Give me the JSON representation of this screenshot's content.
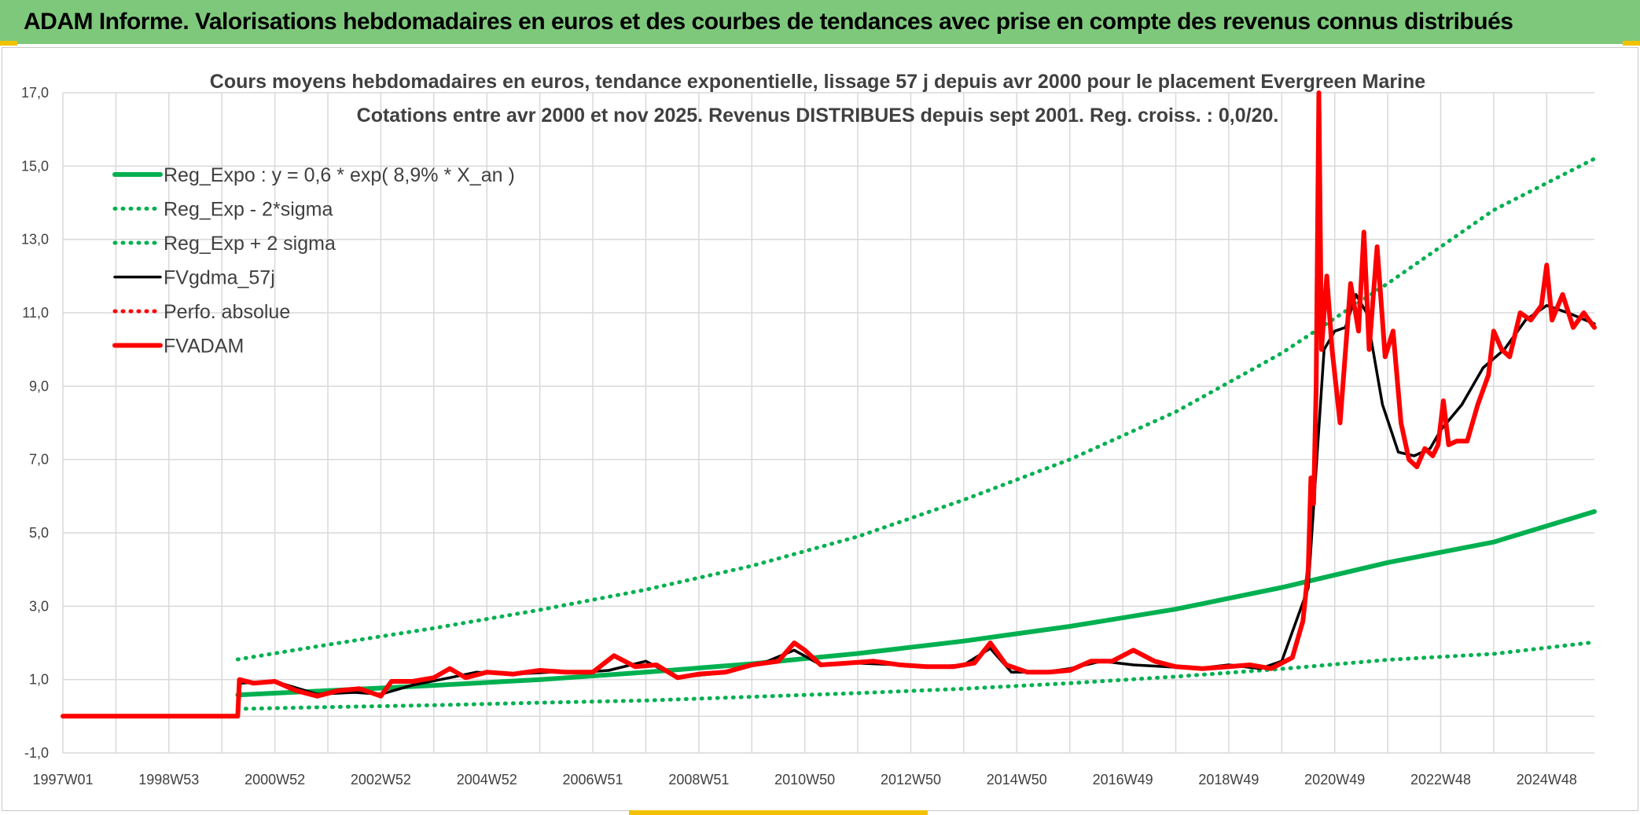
{
  "header": {
    "title": "ADAM Informe. Valorisations hebdomadaires en euros et des courbes de tendances avec prise en compte des revenus connus distribués"
  },
  "colors": {
    "header_bg": "#7ec87c",
    "accent": "#f2c200",
    "reg_expo": "#00b050",
    "fvgdma": "#000000",
    "fvadam": "#ff0000",
    "grid": "#d9d9d9"
  },
  "chart_data": {
    "type": "line",
    "title_lines": [
      "Cours moyens hebdomadaires en euros, tendance exponentielle, lissage 57 j depuis avr 2000 pour le placement Evergreen Marine",
      "Cotations entre avr 2000 et nov 2025. Revenus DISTRIBUES depuis sept 2001. Reg. croiss. : 0,0/20."
    ],
    "x_tick_labels": [
      "1997W01",
      "1998W53",
      "2000W52",
      "2002W52",
      "2004W52",
      "2006W51",
      "2008W51",
      "2010W50",
      "2012W50",
      "2014W50",
      "2016W49",
      "2018W49",
      "2020W49",
      "2022W48",
      "2024W48"
    ],
    "x_tick_years": [
      1997.0,
      1999.0,
      2001.0,
      2003.0,
      2005.0,
      2007.0,
      2009.0,
      2011.0,
      2013.0,
      2015.0,
      2017.0,
      2019.0,
      2021.0,
      2023.0,
      2025.0
    ],
    "x_range": [
      1997.0,
      2025.9
    ],
    "y_ticks": [
      "-1,0",
      "1,0",
      "3,0",
      "5,0",
      "7,0",
      "9,0",
      "11,0",
      "13,0",
      "15,0",
      "17,0"
    ],
    "y_tick_values": [
      -1,
      1,
      3,
      5,
      7,
      9,
      11,
      13,
      15,
      17
    ],
    "ylim": [
      -1,
      17
    ],
    "grid": true,
    "legend_position": "top-left",
    "series": [
      {
        "name": "Reg_Expo : y = 0,6 * exp( 8,9% *  X_an )",
        "key": "reg_expo",
        "style": "solid-thick",
        "color": "#00b050",
        "x": [
          2000.3,
          2002,
          2004,
          2006,
          2008,
          2010,
          2012,
          2014,
          2016,
          2018,
          2020,
          2022,
          2024,
          2025.9
        ],
        "y": [
          0.58,
          0.7,
          0.84,
          1.0,
          1.2,
          1.43,
          1.71,
          2.05,
          2.45,
          2.92,
          3.51,
          4.19,
          4.75,
          5.58
        ]
      },
      {
        "name": "Reg_Exp - 2*sigma",
        "key": "reg_minus",
        "style": "dotted",
        "color": "#00b050",
        "x": [
          2000.3,
          2002,
          2004,
          2006,
          2008,
          2010,
          2012,
          2014,
          2016,
          2018,
          2020,
          2022,
          2024,
          2025.9
        ],
        "y": [
          0.2,
          0.25,
          0.3,
          0.37,
          0.43,
          0.53,
          0.63,
          0.75,
          0.9,
          1.08,
          1.29,
          1.54,
          1.7,
          2.02
        ]
      },
      {
        "name": "Reg_Exp + 2 sigma",
        "key": "reg_plus",
        "style": "dotted",
        "color": "#00b050",
        "x": [
          2000.3,
          2002,
          2004,
          2006,
          2008,
          2010,
          2012,
          2014,
          2016,
          2018,
          2020,
          2022,
          2024,
          2025.9
        ],
        "y": [
          1.55,
          1.95,
          2.4,
          2.9,
          3.45,
          4.1,
          4.9,
          5.9,
          7.0,
          8.3,
          9.9,
          11.8,
          13.8,
          15.2
        ]
      },
      {
        "name": "FVgdma_57j",
        "key": "fvgdma",
        "style": "solid",
        "color": "#000000",
        "x": [
          1997.0,
          2000.3,
          2000.35,
          2001.0,
          2001.8,
          2002.5,
          2003.0,
          2003.6,
          2004.3,
          2004.8,
          2005.5,
          2006.2,
          2006.8,
          2007.3,
          2008.0,
          2008.6,
          2009.2,
          2009.8,
          2010.3,
          2010.8,
          2011.3,
          2012.0,
          2012.8,
          2013.5,
          2014.0,
          2014.5,
          2014.9,
          2015.5,
          2016.0,
          2016.6,
          2017.2,
          2017.8,
          2018.4,
          2019.0,
          2019.6,
          2020.0,
          2020.5,
          2020.8,
          2021.0,
          2021.2,
          2021.4,
          2021.6,
          2021.9,
          2022.2,
          2022.5,
          2022.8,
          2023.0,
          2023.4,
          2023.8,
          2024.2,
          2024.6,
          2025.0,
          2025.4,
          2025.9
        ],
        "y": [
          0.0,
          0.0,
          0.9,
          0.95,
          0.6,
          0.65,
          0.6,
          0.85,
          1.05,
          1.2,
          1.15,
          1.2,
          1.2,
          1.25,
          1.5,
          1.05,
          1.15,
          1.3,
          1.5,
          1.8,
          1.4,
          1.45,
          1.4,
          1.35,
          1.4,
          1.85,
          1.2,
          1.2,
          1.3,
          1.5,
          1.4,
          1.35,
          1.3,
          1.4,
          1.3,
          1.5,
          3.5,
          10.0,
          10.5,
          10.6,
          11.5,
          11.0,
          8.5,
          7.2,
          7.1,
          7.3,
          7.8,
          8.5,
          9.5,
          10.0,
          10.8,
          11.2,
          11.0,
          10.7
        ]
      },
      {
        "name": "Perfo. absolue",
        "key": "perfo",
        "style": "dotted",
        "color": "#ff0000",
        "x": [],
        "y": []
      },
      {
        "name": "FVADAM",
        "key": "fvadam",
        "style": "solid-thick",
        "color": "#ff0000",
        "x": [
          1997.0,
          2000.3,
          2000.33,
          2000.6,
          2001.0,
          2001.4,
          2001.8,
          2002.2,
          2002.6,
          2003.0,
          2003.2,
          2003.6,
          2004.0,
          2004.3,
          2004.6,
          2005.0,
          2005.5,
          2006.0,
          2006.5,
          2007.0,
          2007.4,
          2007.8,
          2008.2,
          2008.6,
          2009.0,
          2009.5,
          2010.0,
          2010.5,
          2010.8,
          2011.0,
          2011.3,
          2011.8,
          2012.3,
          2012.8,
          2013.3,
          2013.8,
          2014.2,
          2014.5,
          2014.8,
          2015.2,
          2015.6,
          2016.0,
          2016.4,
          2016.8,
          2017.2,
          2017.6,
          2018.0,
          2018.5,
          2019.0,
          2019.4,
          2019.8,
          2020.2,
          2020.4,
          2020.5,
          2020.55,
          2020.6,
          2020.65,
          2020.7,
          2020.75,
          2020.85,
          2020.95,
          2021.1,
          2021.3,
          2021.45,
          2021.55,
          2021.65,
          2021.8,
          2021.95,
          2022.1,
          2022.25,
          2022.4,
          2022.55,
          2022.7,
          2022.85,
          2022.95,
          2023.05,
          2023.15,
          2023.3,
          2023.5,
          2023.7,
          2023.9,
          2024.0,
          2024.15,
          2024.3,
          2024.5,
          2024.7,
          2024.9,
          2025.0,
          2025.1,
          2025.3,
          2025.5,
          2025.7,
          2025.9
        ],
        "y": [
          0.0,
          0.0,
          1.0,
          0.9,
          0.95,
          0.7,
          0.55,
          0.7,
          0.75,
          0.55,
          0.95,
          0.95,
          1.05,
          1.3,
          1.05,
          1.2,
          1.15,
          1.25,
          1.2,
          1.2,
          1.65,
          1.35,
          1.4,
          1.05,
          1.15,
          1.2,
          1.4,
          1.5,
          2.0,
          1.8,
          1.4,
          1.45,
          1.5,
          1.4,
          1.35,
          1.35,
          1.45,
          2.0,
          1.4,
          1.2,
          1.2,
          1.25,
          1.5,
          1.5,
          1.8,
          1.5,
          1.35,
          1.3,
          1.35,
          1.4,
          1.3,
          1.6,
          2.6,
          4.0,
          6.5,
          5.8,
          9.0,
          17.0,
          10.0,
          12.0,
          10.0,
          8.0,
          11.8,
          10.5,
          13.2,
          10.0,
          12.8,
          9.8,
          10.5,
          8.0,
          7.0,
          6.8,
          7.3,
          7.1,
          7.4,
          8.6,
          7.4,
          7.5,
          7.5,
          8.5,
          9.3,
          10.5,
          10.0,
          9.8,
          11.0,
          10.8,
          11.2,
          12.3,
          10.8,
          11.5,
          10.6,
          11.0,
          10.6
        ]
      }
    ]
  }
}
